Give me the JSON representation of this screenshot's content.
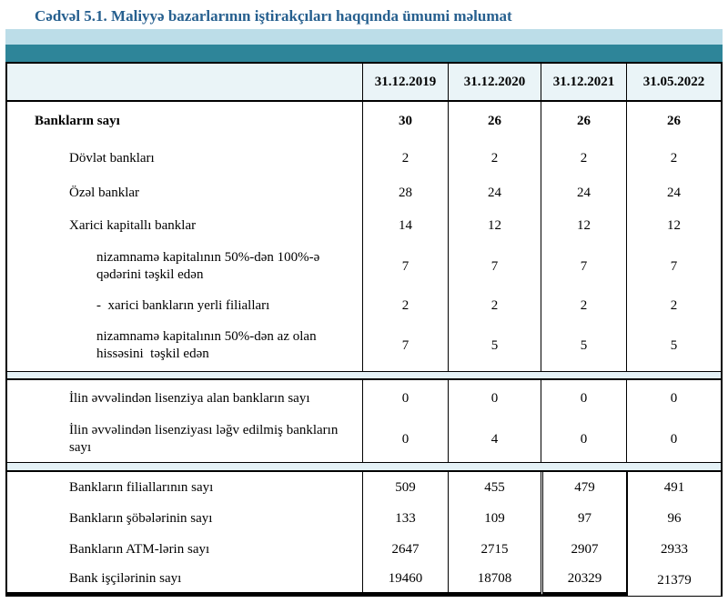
{
  "page": {
    "title": "Cədvəl 5.1. Maliyyə bazarlarının iştirakçıları haqqında ümumi məlumat"
  },
  "colors": {
    "title_blue": "#27608f",
    "band_light": "#bcdde8",
    "band_teal": "#2e8599",
    "header_bg": "#eaf4f7",
    "gap_bg": "#e4f1f6",
    "border": "#000000"
  },
  "table": {
    "column_headers": [
      "31.12.2019",
      "31.12.2020",
      "31.12.2021",
      "31.05.2022"
    ],
    "sections": [
      {
        "rows": [
          {
            "label": "Bankların sayı",
            "values": [
              "30",
              "26",
              "26",
              "26"
            ]
          },
          {
            "label": "Dövlət bankları",
            "values": [
              "2",
              "2",
              "2",
              "2"
            ]
          },
          {
            "label": "Özəl banklar",
            "values": [
              "28",
              "24",
              "24",
              "24"
            ]
          },
          {
            "label": "Xarici kapitallı banklar",
            "values": [
              "14",
              "12",
              "12",
              "12"
            ]
          },
          {
            "label": "nizamnamə kapitalının 50%-dən 100%-ə qədərini təşkil edən",
            "values": [
              "7",
              "7",
              "7",
              "7"
            ]
          },
          {
            "label": "-  xarici bankların yerli filialları",
            "values": [
              "2",
              "2",
              "2",
              "2"
            ]
          },
          {
            "label": "nizamnamə kapitalının 50%-dən az olan hissəsini  təşkil edən",
            "values": [
              "7",
              "5",
              "5",
              "5"
            ]
          }
        ]
      },
      {
        "rows": [
          {
            "label": "İlin əvvəlindən lisenziya alan bankların sayı",
            "values": [
              "0",
              "0",
              "0",
              "0"
            ]
          },
          {
            "label": "İlin əvvəlindən lisenziyası ləğv edilmiş bankların sayı",
            "values": [
              "0",
              "4",
              "0",
              "0"
            ]
          }
        ]
      },
      {
        "rows": [
          {
            "label": "Bankların filiallarının sayı",
            "values": [
              "509",
              "455",
              "479",
              "491"
            ]
          },
          {
            "label": "Bankların şöbələrinin sayı",
            "values": [
              "133",
              "109",
              "97",
              "96"
            ]
          },
          {
            "label": "Bankların ATM-lərin sayı",
            "values": [
              "2647",
              "2715",
              "2907",
              "2933"
            ]
          },
          {
            "label": "Bank işçilərinin sayı",
            "values": [
              "19460",
              "18708",
              "20329",
              "21379"
            ]
          }
        ]
      }
    ]
  }
}
